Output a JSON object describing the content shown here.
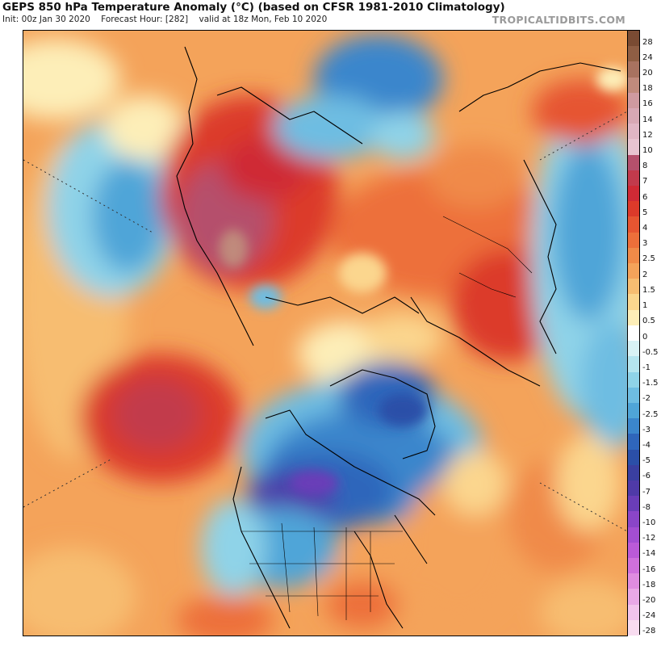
{
  "header": {
    "title": "GEPS 850 hPa Temperature Anomaly (°C) (based on CFSR 1981-2010 Climatology)",
    "init": "Init: 00z Jan 30 2020",
    "forecast_hour": "Forecast Hour: [282]",
    "valid": "valid at 18z Mon, Feb 10 2020",
    "brand": "TROPICALTIDBITS.COM"
  },
  "colorbar": {
    "levels": [
      "28",
      "24",
      "20",
      "18",
      "16",
      "14",
      "12",
      "10",
      "8",
      "7",
      "6",
      "5",
      "4",
      "3",
      "2.5",
      "2",
      "1.5",
      "1",
      "0.5",
      "0",
      "-0.5",
      "-1",
      "-1.5",
      "-2",
      "-2.5",
      "-3",
      "-4",
      "-5",
      "-6",
      "-7",
      "-8",
      "-10",
      "-12",
      "-14",
      "-16",
      "-18",
      "-20",
      "-24",
      "-28"
    ],
    "colors": [
      "#7a4b33",
      "#8f5e44",
      "#a87260",
      "#c08a7c",
      "#cf9aa0",
      "#d7a8b4",
      "#e0b6c4",
      "#e8c4d0",
      "#b5506c",
      "#c23a4c",
      "#cf2a35",
      "#dc3a2a",
      "#e65531",
      "#ed6f3a",
      "#f08a48",
      "#f4a35a",
      "#f7bd71",
      "#fbd68e",
      "#fdeeb8",
      "#ffffff",
      "#d9f2f5",
      "#b5e5ef",
      "#8fd3e8",
      "#6ebde2",
      "#4fa5d8",
      "#3b86cc",
      "#2f66bb",
      "#2b4fa8",
      "#3a3fa0",
      "#4f3aa8",
      "#6a3db8",
      "#8a45c8",
      "#a34ed2",
      "#bb5ad8",
      "#cf70dc",
      "#df8ce0",
      "#e9a8e6",
      "#f2c4ec",
      "#f8dcf0"
    ]
  }
}
